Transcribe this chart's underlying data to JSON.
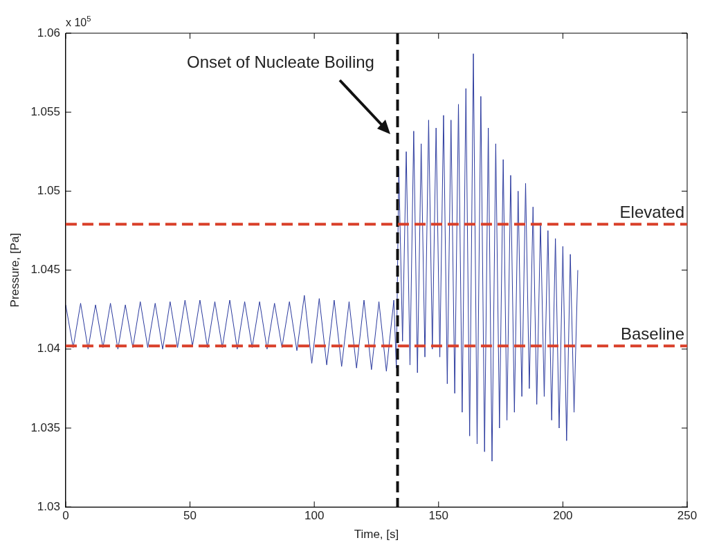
{
  "chart_data": {
    "type": "line",
    "xlabel": "Time, [s]",
    "ylabel": "Pressure, [Pa]",
    "xlim": [
      0,
      250
    ],
    "xticks": [
      0,
      50,
      100,
      150,
      200,
      250
    ],
    "ylim": [
      1.03,
      1.06
    ],
    "yticks": [
      1.03,
      1.035,
      1.04,
      1.045,
      1.05,
      1.055,
      1.06
    ],
    "grid": false,
    "legend": false,
    "marker": "none",
    "line_style": "solid",
    "x": [
      0,
      3,
      6,
      9,
      12,
      15,
      18,
      21,
      24,
      27,
      30,
      33,
      36,
      39,
      42,
      45,
      48,
      51,
      54,
      57,
      60,
      63,
      66,
      69,
      72,
      75,
      78,
      81,
      84,
      87,
      90,
      93,
      96,
      99,
      102,
      105,
      108,
      111,
      114,
      117,
      120,
      123,
      126,
      129,
      132,
      133,
      134,
      135.5,
      137,
      138.5,
      140,
      141.5,
      143,
      144.5,
      146,
      147.5,
      149,
      150.5,
      152,
      153.5,
      155,
      156.5,
      158,
      159.5,
      161,
      162.5,
      164,
      165.5,
      167,
      168.5,
      170,
      171.5,
      173,
      174.5,
      176,
      177.5,
      179,
      180.5,
      182,
      183.5,
      185,
      186.5,
      188,
      189.5,
      191,
      192.5,
      194,
      195.5,
      197,
      198.5,
      200,
      201.5,
      203,
      204.5,
      206
    ],
    "series": [
      {
        "color": "#2b3a9e",
        "values": [
          1.0428,
          1.0401,
          1.0429,
          1.04,
          1.0428,
          1.0401,
          1.0429,
          1.04,
          1.0428,
          1.0401,
          1.043,
          1.0401,
          1.0429,
          1.04,
          1.043,
          1.0401,
          1.0431,
          1.0402,
          1.0431,
          1.0401,
          1.043,
          1.0401,
          1.0431,
          1.04,
          1.043,
          1.0401,
          1.043,
          1.04,
          1.0429,
          1.0401,
          1.043,
          1.0399,
          1.0434,
          1.0391,
          1.0432,
          1.039,
          1.0431,
          1.0389,
          1.043,
          1.0388,
          1.0431,
          1.0387,
          1.043,
          1.0386,
          1.0431,
          1.0388,
          1.0515,
          1.0405,
          1.0525,
          1.039,
          1.0538,
          1.0385,
          1.053,
          1.0395,
          1.0545,
          1.04,
          1.054,
          1.0395,
          1.0548,
          1.0378,
          1.0545,
          1.0372,
          1.0555,
          1.036,
          1.0565,
          1.0345,
          1.0587,
          1.034,
          1.056,
          1.0335,
          1.054,
          1.0329,
          1.053,
          1.035,
          1.052,
          1.0355,
          1.051,
          1.036,
          1.05,
          1.037,
          1.0505,
          1.0375,
          1.049,
          1.0365,
          1.048,
          1.037,
          1.0475,
          1.0355,
          1.047,
          1.035,
          1.0465,
          1.0342,
          1.046,
          1.036,
          1.045
        ]
      }
    ],
    "ref_lines": [
      {
        "axis": "x",
        "value": 133.5,
        "color": "#111111",
        "line_style": "dashed"
      },
      {
        "axis": "y",
        "value": 1.0479,
        "label": "Elevated",
        "color": "#d9402a",
        "line_style": "dashed"
      },
      {
        "axis": "y",
        "value": 1.0402,
        "label": "Baseline",
        "color": "#d9402a",
        "line_style": "dashed"
      }
    ],
    "annotations": [
      "Onset of Nucleate Boiling",
      "x 10$^{5}$"
    ]
  }
}
